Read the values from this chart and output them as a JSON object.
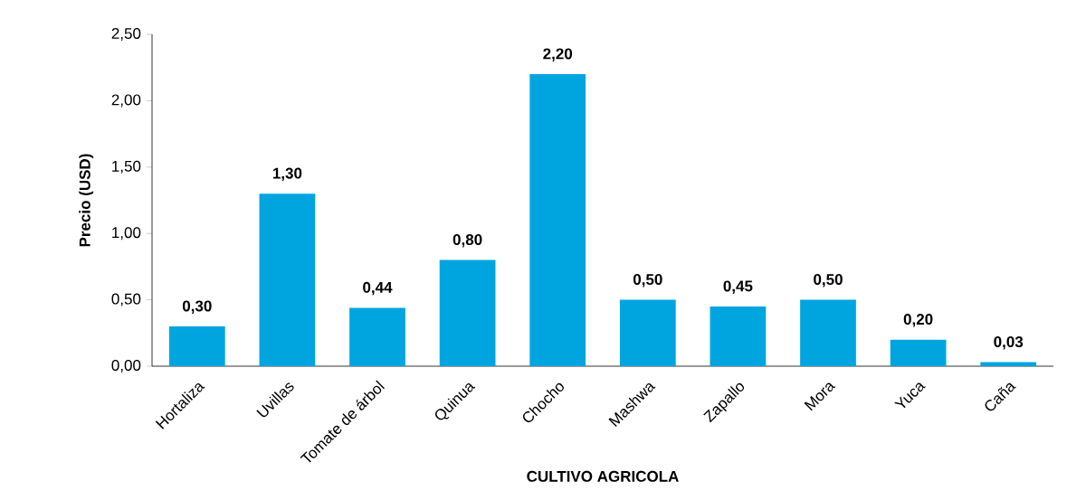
{
  "chart_data": {
    "type": "bar",
    "xlabel": "CULTIVO AGRICOLA",
    "ylabel": "Precio (USD)",
    "categories": [
      "Hortaliza",
      "Uvillas",
      "Tomate de árbol",
      "Quinua",
      "Chocho",
      "Mashwa",
      "Zapallo",
      "Mora",
      "Yuca",
      "Caña"
    ],
    "values": [
      0.3,
      1.3,
      0.44,
      0.8,
      2.2,
      0.5,
      0.45,
      0.5,
      0.2,
      0.03
    ],
    "value_labels": [
      "0,30",
      "1,30",
      "0,44",
      "0,80",
      "2,20",
      "0,50",
      "0,45",
      "0,50",
      "0,20",
      "0,03"
    ],
    "color": "#00a5e0",
    "ylim": [
      0,
      2.5
    ],
    "yticks": [
      {
        "value": 0,
        "label": "0,00"
      },
      {
        "value": 0.5,
        "label": "0,50"
      },
      {
        "value": 1,
        "label": "1,00"
      },
      {
        "value": 1.5,
        "label": "1,50"
      },
      {
        "value": 2,
        "label": "2,00"
      },
      {
        "value": 2.5,
        "label": "2,50"
      }
    ],
    "grid": false
  }
}
